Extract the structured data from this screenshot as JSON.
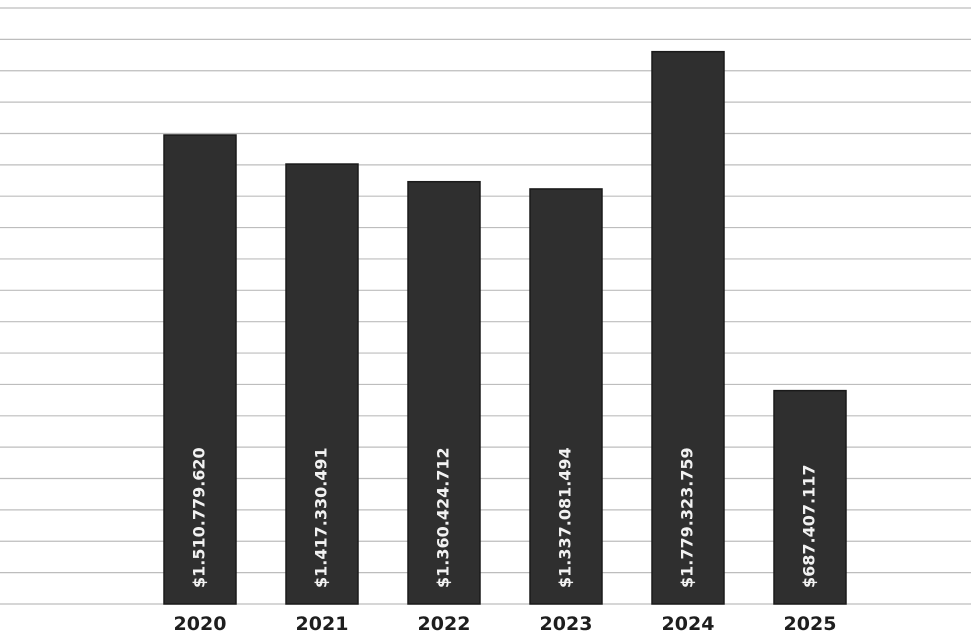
{
  "chart_data": {
    "type": "bar",
    "categories": [
      "2020",
      "2021",
      "2022",
      "2023",
      "2024",
      "2025"
    ],
    "values": [
      1510779620,
      1417330491,
      1360424712,
      1337081494,
      1779323759,
      687407117
    ],
    "data_labels": [
      "$1.510.779.620",
      "$1.417.330.491",
      "$1.360.424.712",
      "$1.337.081.494",
      "$1.779.323.759",
      "$687.407.117"
    ],
    "title": "",
    "xlabel": "",
    "ylabel": "",
    "ylim": [
      0,
      1920000000
    ],
    "grid": true,
    "legend": "none",
    "colors": {
      "bar": "#2f2f2f",
      "bar_edge": "#1a1a1a",
      "grid": "#bdbdbd",
      "label_text": "#f2f2f2",
      "tick_text": "#1e1e1e"
    }
  }
}
